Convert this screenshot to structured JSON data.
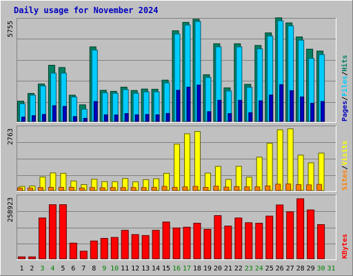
{
  "title": "Daily usage for November 2024",
  "colors": {
    "background": "#c0c0c0",
    "title": "#0000c0",
    "hits": "#008060",
    "files": "#00ccff",
    "pages": "#0000c0",
    "visits": "#ffff00",
    "sites": "#ff8000",
    "kbytes": "#ff0000",
    "weekend_label": "#008000",
    "weekday_label": "#000000"
  },
  "chart_data": [
    {
      "type": "bar",
      "title": "",
      "max_label": "5755",
      "ylim": [
        0,
        5755
      ],
      "legend": [
        "Pages",
        "Files",
        "Hits"
      ],
      "categories": [
        "1",
        "2",
        "3",
        "4",
        "5",
        "6",
        "7",
        "8",
        "9",
        "10",
        "11",
        "12",
        "13",
        "14",
        "15",
        "16",
        "17",
        "18",
        "19",
        "20",
        "21",
        "22",
        "23",
        "24",
        "25",
        "26",
        "27",
        "28",
        "29",
        "30",
        "31"
      ],
      "series": [
        {
          "name": "Hits",
          "values": [
            1160,
            1600,
            2140,
            3210,
            3080,
            1500,
            950,
            4260,
            1780,
            1720,
            1960,
            1770,
            1850,
            1840,
            2360,
            5180,
            5660,
            5840,
            2670,
            4440,
            1920,
            4440,
            2120,
            4340,
            5060,
            5920,
            5630,
            4830,
            4130,
            4020,
            0
          ]
        },
        {
          "name": "Files",
          "values": [
            1010,
            1500,
            2030,
            2760,
            2760,
            1400,
            700,
            4080,
            1640,
            1610,
            1820,
            1610,
            1690,
            1690,
            2200,
            5000,
            5510,
            5710,
            2510,
            4260,
            1740,
            4260,
            1950,
            4150,
            4880,
            5750,
            5460,
            4640,
            3600,
            3820,
            0
          ]
        },
        {
          "name": "Pages",
          "values": [
            250,
            330,
            400,
            900,
            860,
            280,
            180,
            1140,
            380,
            370,
            450,
            380,
            400,
            380,
            460,
            1780,
            1960,
            2080,
            560,
            1210,
            450,
            1210,
            500,
            1180,
            1510,
            2100,
            1760,
            1400,
            1040,
            1140,
            0
          ]
        }
      ]
    },
    {
      "type": "bar",
      "title": "",
      "max_label": "2763",
      "ylim": [
        0,
        2763
      ],
      "legend": [
        "Sites",
        "Visits"
      ],
      "categories": [
        "1",
        "2",
        "3",
        "4",
        "5",
        "6",
        "7",
        "8",
        "9",
        "10",
        "11",
        "12",
        "13",
        "14",
        "15",
        "16",
        "17",
        "18",
        "19",
        "20",
        "21",
        "22",
        "23",
        "24",
        "25",
        "26",
        "27",
        "28",
        "29",
        "30",
        "31"
      ],
      "series": [
        {
          "name": "Visits",
          "values": [
            180,
            200,
            600,
            780,
            760,
            420,
            260,
            500,
            390,
            390,
            530,
            380,
            480,
            520,
            760,
            2060,
            2520,
            2620,
            770,
            1070,
            490,
            1070,
            590,
            1480,
            2100,
            2700,
            2740,
            1570,
            1230,
            1660,
            0
          ]
        },
        {
          "name": "Sites",
          "values": [
            110,
            110,
            130,
            140,
            140,
            140,
            110,
            130,
            120,
            130,
            130,
            130,
            130,
            140,
            180,
            140,
            160,
            180,
            140,
            190,
            150,
            170,
            160,
            160,
            200,
            280,
            290,
            260,
            250,
            270,
            0
          ]
        }
      ]
    },
    {
      "type": "bar",
      "title": "",
      "max_label": "258923",
      "ylim": [
        0,
        258923
      ],
      "legend": [
        "KBytes"
      ],
      "categories": [
        "1",
        "2",
        "3",
        "4",
        "5",
        "6",
        "7",
        "8",
        "9",
        "10",
        "11",
        "12",
        "13",
        "14",
        "15",
        "16",
        "17",
        "18",
        "19",
        "20",
        "21",
        "22",
        "23",
        "24",
        "25",
        "26",
        "27",
        "28",
        "29",
        "30",
        "31"
      ],
      "series": [
        {
          "name": "KBytes",
          "values": [
            8000,
            8000,
            172000,
            228000,
            228000,
            66000,
            32000,
            75000,
            86000,
            90000,
            120000,
            102000,
            98000,
            120000,
            155000,
            130000,
            133000,
            150000,
            124000,
            182000,
            138000,
            172000,
            152000,
            150000,
            180000,
            227000,
            198000,
            253000,
            206000,
            144000,
            0
          ]
        }
      ]
    }
  ],
  "x_axis": {
    "labels": [
      "1",
      "2",
      "3",
      "4",
      "5",
      "6",
      "7",
      "8",
      "9",
      "10",
      "11",
      "12",
      "13",
      "14",
      "15",
      "16",
      "17",
      "18",
      "19",
      "20",
      "21",
      "22",
      "23",
      "24",
      "25",
      "26",
      "27",
      "28",
      "29",
      "30",
      "31"
    ],
    "weekend": [
      false,
      false,
      true,
      true,
      false,
      false,
      false,
      false,
      true,
      true,
      false,
      false,
      false,
      false,
      false,
      true,
      true,
      false,
      false,
      false,
      false,
      false,
      true,
      true,
      false,
      false,
      false,
      false,
      false,
      true,
      true
    ]
  }
}
